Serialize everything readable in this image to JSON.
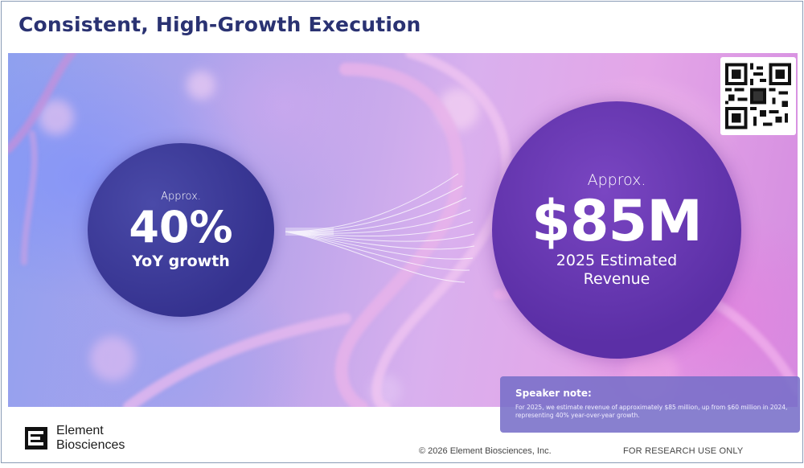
{
  "slide": {
    "title": "Consistent, High-Growth Execution"
  },
  "left_circle": {
    "approx": "Approx.",
    "value": "40%",
    "label": "YoY growth"
  },
  "right_circle": {
    "approx": "Approx.",
    "value": "$85M",
    "label_line1": "2025 Estimated",
    "label_line2": "Revenue"
  },
  "speaker_note": {
    "title": "Speaker note:",
    "body": "For 2025, we estimate revenue of approximately $85 million, up from $60 million in 2024, representing 40% year-over-year growth."
  },
  "footer": {
    "brand_line1": "Element",
    "brand_line2": "Biosciences",
    "copyright": "© 2026 Element Biosciences, Inc.",
    "ruo": "FOR RESEARCH USE ONLY"
  },
  "colors": {
    "title": "#2a3272",
    "left_circle": "#35328f",
    "right_circle": "#5b2fa6",
    "speaker_note_bg": "#786ec8"
  },
  "icons": {
    "qr": "qr-code-icon",
    "logo": "element-logo-icon"
  }
}
